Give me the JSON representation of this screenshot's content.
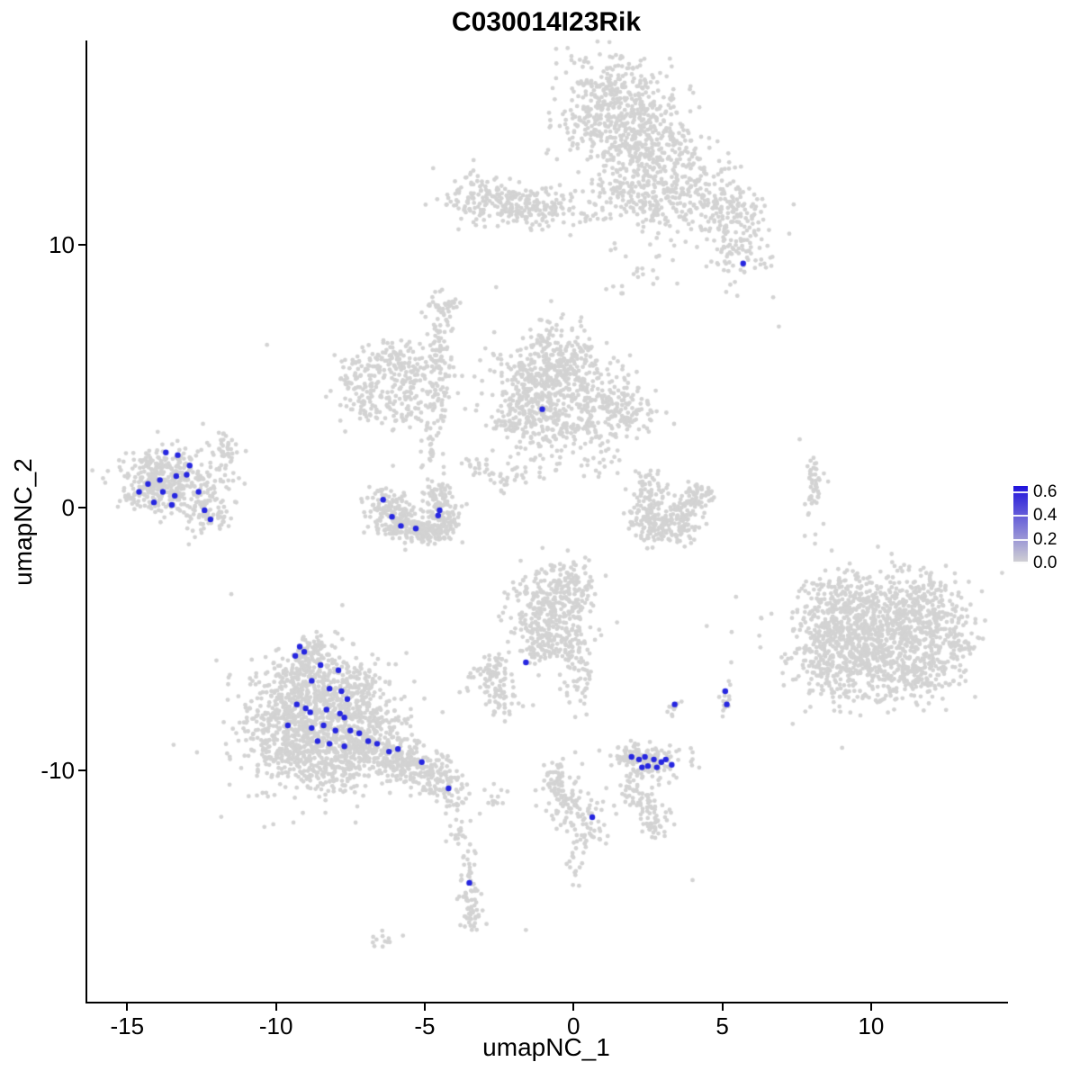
{
  "chart_data": {
    "type": "scatter",
    "title": "C030014I23Rik",
    "xlabel": "umapNC_1",
    "ylabel": "umapNC_2",
    "xlim": [
      -16.4,
      14.6
    ],
    "ylim": [
      -18.9,
      17.8
    ],
    "x_ticks": [
      -15,
      -10,
      -5,
      0,
      5,
      10
    ],
    "y_ticks": [
      -10,
      0,
      10
    ],
    "grid": false,
    "legend": {
      "position": "right",
      "ticks": [
        0.6,
        0.4,
        0.2,
        0.0
      ],
      "min": 0.0,
      "max": 0.65,
      "color_low": "#D3D3D3",
      "color_high": "#2013DC"
    },
    "point_colors": {
      "background": "#D3D3D3",
      "expressing": "#2626E0"
    },
    "background_clusters": [
      [
        1.5,
        15.0,
        0.95,
        1.15,
        520
      ],
      [
        2.7,
        13.5,
        0.8,
        0.8,
        200
      ],
      [
        3.7,
        12.4,
        0.9,
        0.7,
        150
      ],
      [
        4.9,
        11.4,
        0.8,
        0.6,
        120
      ],
      [
        5.6,
        10.0,
        0.55,
        0.8,
        100
      ],
      [
        2.5,
        11.6,
        0.55,
        0.7,
        60
      ],
      [
        1.6,
        11.8,
        0.6,
        0.5,
        40
      ],
      [
        0.4,
        11.3,
        0.8,
        0.5,
        35
      ],
      [
        -2.4,
        11.6,
        0.9,
        0.4,
        150
      ],
      [
        -1.2,
        11.4,
        0.7,
        0.35,
        80
      ],
      [
        -3.3,
        12.1,
        0.45,
        0.45,
        45
      ],
      [
        2.2,
        9.5,
        0.7,
        0.7,
        25
      ],
      [
        -1.0,
        4.6,
        0.8,
        0.9,
        340
      ],
      [
        -0.2,
        5.6,
        0.7,
        0.6,
        120
      ],
      [
        0.8,
        4.0,
        0.7,
        0.8,
        150
      ],
      [
        1.8,
        3.6,
        0.5,
        0.5,
        80
      ],
      [
        -1.8,
        3.4,
        0.5,
        0.5,
        80
      ],
      [
        -0.9,
        6.1,
        0.4,
        0.5,
        60
      ],
      [
        -0.4,
        3.1,
        0.6,
        0.4,
        70
      ],
      [
        -7.0,
        4.6,
        0.5,
        0.6,
        90
      ],
      [
        -6.2,
        5.6,
        0.6,
        0.45,
        90
      ],
      [
        -5.3,
        5.0,
        0.4,
        0.5,
        70
      ],
      [
        -6.0,
        3.8,
        0.6,
        0.4,
        70
      ],
      [
        -4.5,
        6.7,
        0.25,
        0.8,
        60
      ],
      [
        -4.4,
        4.7,
        0.25,
        0.8,
        50
      ],
      [
        -4.3,
        7.7,
        0.3,
        0.3,
        25
      ],
      [
        -6.3,
        0.1,
        0.35,
        0.45,
        90
      ],
      [
        -5.8,
        -0.6,
        0.4,
        0.35,
        110
      ],
      [
        -5.0,
        -0.85,
        0.45,
        0.3,
        110
      ],
      [
        -4.3,
        -0.35,
        0.3,
        0.45,
        90
      ],
      [
        -4.6,
        0.4,
        0.25,
        0.3,
        40
      ],
      [
        -4.8,
        2.3,
        0.2,
        0.6,
        30
      ],
      [
        -3.3,
        1.6,
        0.5,
        0.4,
        25
      ],
      [
        -2.4,
        0.9,
        0.4,
        0.35,
        20
      ],
      [
        -1.3,
        1.8,
        0.55,
        0.55,
        28
      ],
      [
        0.8,
        1.9,
        0.4,
        0.5,
        22
      ],
      [
        -13.6,
        1.2,
        0.8,
        0.55,
        280
      ],
      [
        -14.2,
        0.6,
        0.5,
        0.4,
        80
      ],
      [
        -12.6,
        0.3,
        0.5,
        0.6,
        90
      ],
      [
        -11.8,
        2.1,
        0.3,
        0.5,
        45
      ],
      [
        -12.2,
        -0.3,
        0.35,
        0.35,
        40
      ],
      [
        2.4,
        0.0,
        0.3,
        0.5,
        80
      ],
      [
        3.0,
        -0.75,
        0.5,
        0.3,
        110
      ],
      [
        3.8,
        -0.2,
        0.3,
        0.45,
        80
      ],
      [
        4.3,
        0.5,
        0.25,
        0.3,
        35
      ],
      [
        2.6,
        0.9,
        0.3,
        0.25,
        30
      ],
      [
        8.1,
        0.8,
        0.15,
        0.7,
        45
      ],
      [
        10.4,
        -4.8,
        1.3,
        1.1,
        650
      ],
      [
        9.2,
        -6.0,
        0.8,
        0.7,
        200
      ],
      [
        11.6,
        -3.6,
        0.7,
        0.6,
        150
      ],
      [
        9.0,
        -3.6,
        0.6,
        0.6,
        120
      ],
      [
        11.5,
        -6.3,
        0.7,
        0.6,
        150
      ],
      [
        8.3,
        -4.9,
        0.5,
        0.6,
        90
      ],
      [
        12.5,
        -5.0,
        0.5,
        0.6,
        90
      ],
      [
        10.1,
        -5.0,
        1.9,
        1.5,
        130
      ],
      [
        -0.7,
        -3.9,
        0.7,
        0.8,
        280
      ],
      [
        -0.1,
        -2.9,
        0.5,
        0.45,
        80
      ],
      [
        -1.3,
        -5.0,
        0.4,
        0.5,
        70
      ],
      [
        -0.3,
        -5.2,
        0.4,
        0.4,
        60
      ],
      [
        0.2,
        -6.3,
        0.3,
        0.7,
        50
      ],
      [
        -2.7,
        -6.5,
        0.35,
        0.5,
        80
      ],
      [
        -2.4,
        -7.4,
        0.3,
        0.3,
        35
      ],
      [
        -8.8,
        -8.2,
        1.2,
        1.1,
        600
      ],
      [
        -9.8,
        -9.0,
        0.6,
        0.7,
        150
      ],
      [
        -7.6,
        -7.2,
        0.7,
        0.7,
        200
      ],
      [
        -9.3,
        -6.8,
        0.6,
        0.5,
        120
      ],
      [
        -7.0,
        -8.7,
        0.7,
        0.6,
        180
      ],
      [
        -8.0,
        -9.8,
        0.7,
        0.5,
        150
      ],
      [
        -6.3,
        -9.4,
        0.6,
        0.4,
        120
      ],
      [
        -5.5,
        -9.8,
        0.5,
        0.35,
        90
      ],
      [
        -9.0,
        -5.9,
        0.4,
        0.4,
        60
      ],
      [
        -8.6,
        -5.3,
        0.3,
        0.3,
        40
      ],
      [
        -8.5,
        -8.3,
        1.8,
        1.6,
        120
      ],
      [
        -4.7,
        -10.2,
        0.45,
        0.4,
        90
      ],
      [
        -4.2,
        -10.9,
        0.3,
        0.3,
        40
      ],
      [
        -3.8,
        -12.3,
        0.2,
        0.3,
        18
      ],
      [
        -3.5,
        -14.6,
        0.15,
        0.8,
        60
      ],
      [
        -3.4,
        -15.7,
        0.2,
        0.3,
        20
      ],
      [
        -6.5,
        -16.4,
        0.3,
        0.2,
        12
      ],
      [
        -0.6,
        -10.4,
        0.3,
        0.4,
        50
      ],
      [
        -0.1,
        -11.3,
        0.35,
        0.5,
        70
      ],
      [
        0.4,
        -12.2,
        0.3,
        0.4,
        40
      ],
      [
        0.0,
        -13.4,
        0.25,
        0.5,
        15
      ],
      [
        -2.7,
        -11.1,
        0.25,
        0.3,
        14
      ],
      [
        2.1,
        -10.9,
        0.3,
        0.35,
        50
      ],
      [
        2.7,
        -11.8,
        0.3,
        0.4,
        50
      ],
      [
        2.55,
        -9.7,
        0.55,
        0.35,
        110
      ],
      [
        1.9,
        -9.5,
        0.3,
        0.3,
        40
      ],
      [
        3.4,
        -7.6,
        0.15,
        0.2,
        10
      ],
      [
        5.1,
        -7.4,
        0.18,
        0.35,
        14
      ]
    ],
    "background_singles": [
      [
        -10.3,
        6.2
      ],
      [
        -2.6,
        8.4
      ],
      [
        6.9,
        6.9
      ],
      [
        5.3,
        -5.9
      ],
      [
        -11.5,
        -3.3
      ],
      [
        4.0,
        -14.2
      ],
      [
        -1.6,
        -16.1
      ],
      [
        7.6,
        2.6
      ]
    ],
    "expressing_cells": [
      [
        -13.7,
        2.1
      ],
      [
        -13.3,
        2.0
      ],
      [
        -12.9,
        1.6
      ],
      [
        -13.0,
        1.25
      ],
      [
        -13.35,
        1.2
      ],
      [
        -13.9,
        1.05
      ],
      [
        -14.3,
        0.9
      ],
      [
        -14.6,
        0.6
      ],
      [
        -13.8,
        0.6
      ],
      [
        -13.4,
        0.45
      ],
      [
        -12.6,
        0.6
      ],
      [
        -14.1,
        0.2
      ],
      [
        -13.5,
        0.1
      ],
      [
        -12.4,
        -0.1
      ],
      [
        -12.2,
        -0.45
      ],
      [
        -6.4,
        0.3
      ],
      [
        -6.1,
        -0.35
      ],
      [
        -5.8,
        -0.7
      ],
      [
        -5.3,
        -0.8
      ],
      [
        -4.55,
        -0.3
      ],
      [
        -4.5,
        -0.1
      ],
      [
        -1.05,
        3.75
      ],
      [
        5.7,
        9.3
      ],
      [
        -9.2,
        -5.3
      ],
      [
        -9.05,
        -5.5
      ],
      [
        -9.35,
        -5.65
      ],
      [
        -8.5,
        -6.0
      ],
      [
        -7.9,
        -6.2
      ],
      [
        -8.8,
        -6.6
      ],
      [
        -8.2,
        -6.9
      ],
      [
        -7.8,
        -7.0
      ],
      [
        -7.6,
        -7.3
      ],
      [
        -9.3,
        -7.5
      ],
      [
        -9.0,
        -7.65
      ],
      [
        -8.85,
        -7.8
      ],
      [
        -8.3,
        -7.7
      ],
      [
        -7.85,
        -7.85
      ],
      [
        -7.7,
        -8.0
      ],
      [
        -9.6,
        -8.3
      ],
      [
        -8.8,
        -8.4
      ],
      [
        -8.4,
        -8.3
      ],
      [
        -8.0,
        -8.5
      ],
      [
        -7.5,
        -8.5
      ],
      [
        -7.2,
        -8.6
      ],
      [
        -8.6,
        -8.9
      ],
      [
        -8.2,
        -9.0
      ],
      [
        -7.7,
        -9.1
      ],
      [
        -6.9,
        -8.9
      ],
      [
        -6.6,
        -9.0
      ],
      [
        -6.2,
        -9.3
      ],
      [
        -5.9,
        -9.2
      ],
      [
        -5.1,
        -9.7
      ],
      [
        -4.2,
        -10.7
      ],
      [
        -1.6,
        -5.9
      ],
      [
        0.63,
        -11.8
      ],
      [
        -3.5,
        -14.3
      ],
      [
        3.4,
        -7.5
      ],
      [
        5.1,
        -7.0
      ],
      [
        5.15,
        -7.5
      ],
      [
        1.95,
        -9.5
      ],
      [
        2.2,
        -9.6
      ],
      [
        2.4,
        -9.5
      ],
      [
        2.5,
        -9.85
      ],
      [
        2.7,
        -9.6
      ],
      [
        2.8,
        -9.9
      ],
      [
        2.95,
        -9.7
      ],
      [
        3.1,
        -9.6
      ],
      [
        3.3,
        -9.8
      ],
      [
        2.3,
        -9.9
      ]
    ]
  }
}
